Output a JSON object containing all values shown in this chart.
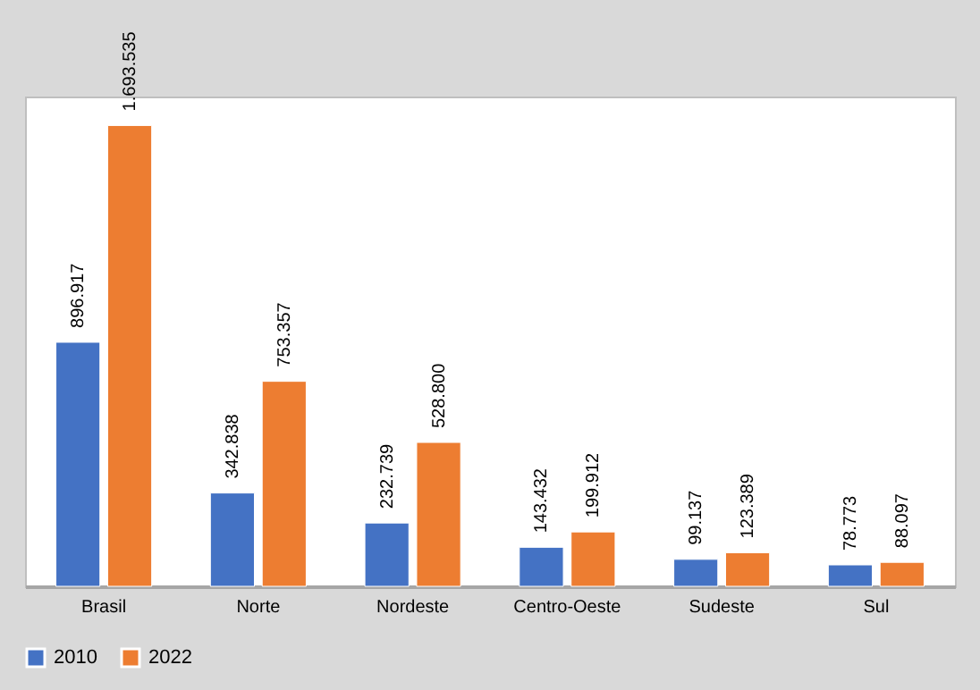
{
  "chart_data": {
    "type": "bar",
    "categories": [
      "Brasil",
      "Norte",
      "Nordeste",
      "Centro-Oeste",
      "Sudeste",
      "Sul"
    ],
    "series": [
      {
        "name": "2010",
        "color": "#4472c4",
        "values": [
          896917,
          342838,
          232739,
          143432,
          99137,
          78773
        ],
        "value_labels": [
          "896.917",
          "342.838",
          "232.739",
          "143.432",
          "99.137",
          "78.773"
        ]
      },
      {
        "name": "2022",
        "color": "#ed7d31",
        "values": [
          1693535,
          753357,
          528800,
          199912,
          123389,
          88097
        ],
        "value_labels": [
          "1.693.535",
          "753.357",
          "528.800",
          "199.912",
          "123.389",
          "88.097"
        ]
      }
    ],
    "legend": "bottom",
    "grid": false
  }
}
